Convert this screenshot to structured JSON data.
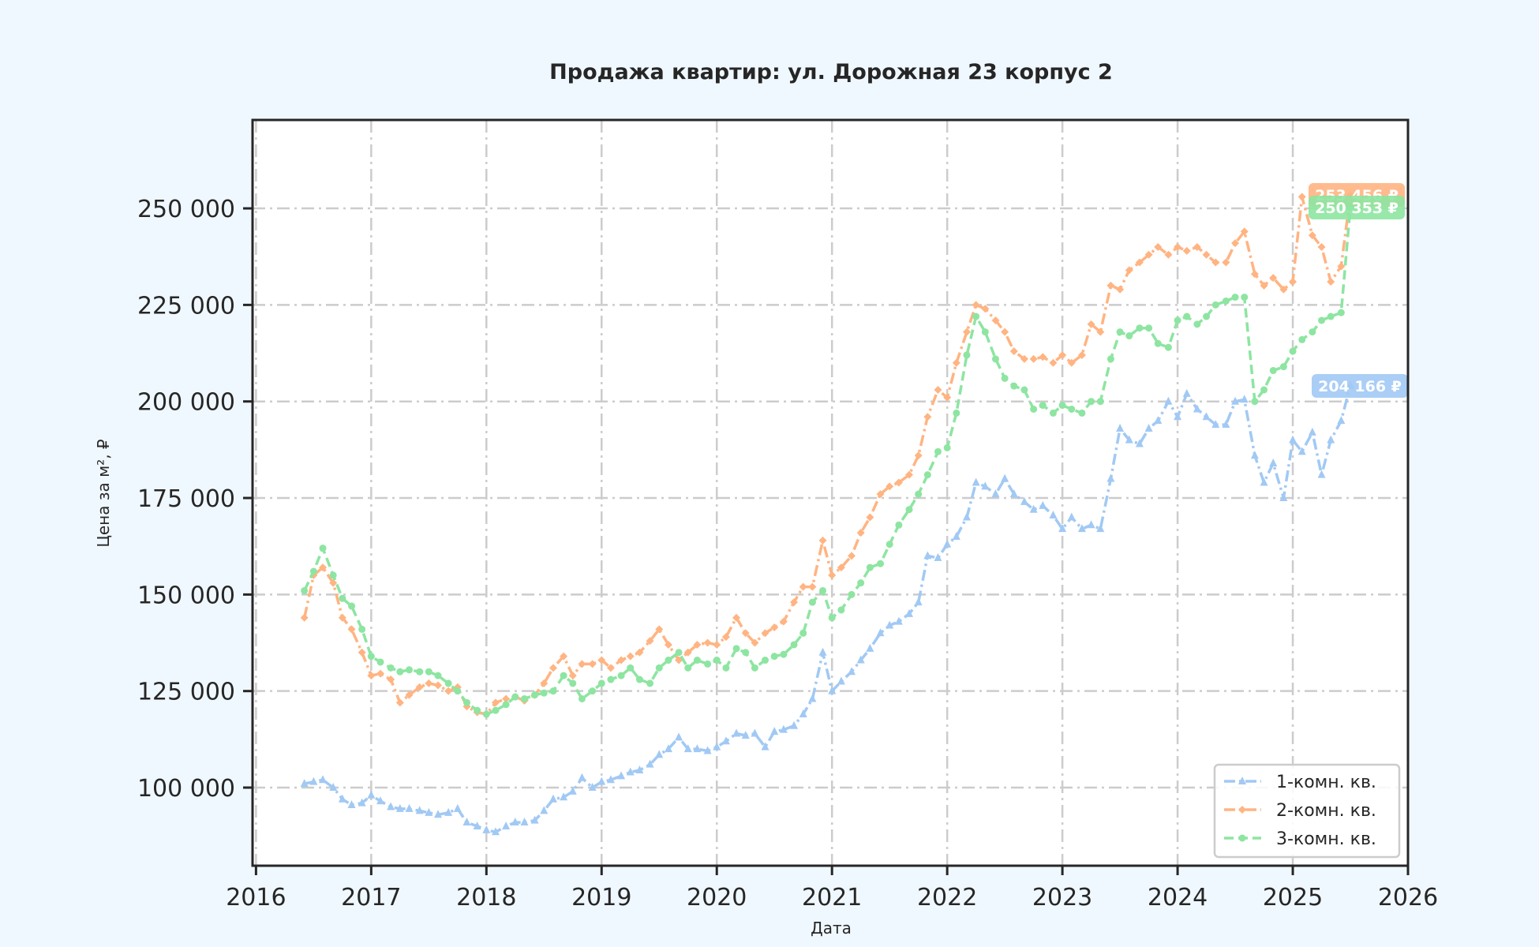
{
  "page": {
    "background": "#f0f8ff",
    "plot_background": "#ffffff"
  },
  "chart_data": {
    "type": "line",
    "title": "Продажа квартир: ул. Дорожная 23 корпус 2",
    "xlabel": "Дата",
    "ylabel": "Цена за м², ₽",
    "xlim": [
      2015.97,
      2026.0
    ],
    "ylim": [
      79770,
      272900
    ],
    "grid": true,
    "grid_style": "dashdot",
    "legend_position": "lower right",
    "x_ticks": [
      2016,
      2017,
      2018,
      2019,
      2020,
      2021,
      2022,
      2023,
      2024,
      2025,
      2026
    ],
    "x_tick_labels": [
      "2016",
      "2017",
      "2018",
      "2019",
      "2020",
      "2021",
      "2022",
      "2023",
      "2024",
      "2025",
      "2026"
    ],
    "y_ticks": [
      100000,
      125000,
      150000,
      175000,
      200000,
      225000,
      250000
    ],
    "y_tick_labels": [
      "100 000",
      "125 000",
      "150 000",
      "175 000",
      "200 000",
      "225 000",
      "250 000"
    ],
    "x": [
      2016.42,
      2016.5,
      2016.58,
      2016.67,
      2016.75,
      2016.83,
      2016.92,
      2017.0,
      2017.08,
      2017.17,
      2017.25,
      2017.33,
      2017.42,
      2017.5,
      2017.58,
      2017.67,
      2017.75,
      2017.83,
      2017.92,
      2018.0,
      2018.08,
      2018.17,
      2018.25,
      2018.33,
      2018.42,
      2018.5,
      2018.58,
      2018.67,
      2018.75,
      2018.83,
      2018.92,
      2019.0,
      2019.08,
      2019.17,
      2019.25,
      2019.33,
      2019.42,
      2019.5,
      2019.58,
      2019.67,
      2019.75,
      2019.83,
      2019.92,
      2020.0,
      2020.08,
      2020.17,
      2020.25,
      2020.33,
      2020.42,
      2020.5,
      2020.58,
      2020.67,
      2020.75,
      2020.83,
      2020.92,
      2021.0,
      2021.08,
      2021.17,
      2021.25,
      2021.33,
      2021.42,
      2021.5,
      2021.58,
      2021.67,
      2021.75,
      2021.83,
      2021.92,
      2022.0,
      2022.08,
      2022.17,
      2022.25,
      2022.33,
      2022.42,
      2022.5,
      2022.58,
      2022.67,
      2022.75,
      2022.83,
      2022.92,
      2023.0,
      2023.08,
      2023.17,
      2023.25,
      2023.33,
      2023.42,
      2023.5,
      2023.58,
      2023.67,
      2023.75,
      2023.83,
      2023.92,
      2024.0,
      2024.08,
      2024.17,
      2024.25,
      2024.33,
      2024.42,
      2024.5,
      2024.58,
      2024.67,
      2024.75,
      2024.83,
      2024.92,
      2025.0,
      2025.08,
      2025.17,
      2025.25,
      2025.33,
      2025.42,
      2025.5
    ],
    "series": [
      {
        "name": "1-комн. кв.",
        "color": "#a1c9f4",
        "marker": "triangle",
        "linestyle": "dashdot",
        "values": [
          101000,
          101500,
          102000,
          100000,
          97000,
          95500,
          96000,
          98000,
          96500,
          95000,
          94500,
          94500,
          94000,
          93500,
          93000,
          93500,
          94500,
          91000,
          90000,
          89000,
          88500,
          90000,
          91000,
          91000,
          91500,
          94000,
          97000,
          97500,
          99000,
          102500,
          100000,
          101500,
          102000,
          103000,
          104000,
          104500,
          106000,
          108500,
          110000,
          113000,
          110000,
          110000,
          109500,
          110500,
          112000,
          114000,
          113500,
          114000,
          110500,
          114500,
          115000,
          116000,
          119000,
          123000,
          135000,
          125000,
          127500,
          130000,
          133000,
          136000,
          140000,
          142000,
          143000,
          145000,
          148000,
          160000,
          159500,
          163000,
          165000,
          170000,
          179000,
          178000,
          176000,
          180000,
          176000,
          174000,
          172000,
          173000,
          170500,
          167000,
          170000,
          167000,
          168000,
          167000,
          180000,
          193000,
          190000,
          189000,
          193000,
          195000,
          200000,
          196000,
          202000,
          198000,
          196000,
          194000,
          194000,
          200000,
          200500,
          186000,
          179000,
          184000,
          175000,
          190000,
          187000,
          192000,
          181000,
          190000,
          195000,
          204166
        ]
      },
      {
        "name": "2-комн. кв.",
        "color": "#ffb482",
        "marker": "diamond",
        "linestyle": "dashdot",
        "values": [
          144000,
          155000,
          157000,
          153000,
          144000,
          141000,
          135000,
          129000,
          129500,
          128000,
          122000,
          124000,
          126000,
          127000,
          126500,
          125000,
          126000,
          121000,
          119500,
          119000,
          122000,
          123000,
          123500,
          122500,
          124000,
          127000,
          131000,
          134000,
          129000,
          132000,
          132000,
          133000,
          131000,
          133000,
          134000,
          135000,
          138000,
          141000,
          137000,
          133000,
          135000,
          137000,
          137500,
          137000,
          139000,
          144000,
          140000,
          137500,
          140000,
          141500,
          143000,
          148000,
          152000,
          152000,
          164000,
          155000,
          157000,
          160000,
          166000,
          170000,
          176000,
          178000,
          179000,
          181000,
          186000,
          196000,
          203000,
          201000,
          210000,
          218000,
          225000,
          224000,
          221000,
          218000,
          213000,
          211000,
          211000,
          211500,
          210000,
          212000,
          210000,
          212000,
          220000,
          218000,
          230000,
          229000,
          234000,
          236000,
          238000,
          240000,
          238000,
          240000,
          239000,
          240000,
          238000,
          236000,
          236000,
          241000,
          244000,
          233000,
          230000,
          232000,
          229000,
          231000,
          253000,
          243000,
          240000,
          231000,
          235000,
          253456
        ]
      },
      {
        "name": "3-комн. кв.",
        "color": "#8de5a1",
        "marker": "circle",
        "linestyle": "dashed",
        "values": [
          151000,
          156000,
          162000,
          155000,
          149000,
          147000,
          141000,
          134000,
          132500,
          131000,
          130000,
          130500,
          130000,
          130000,
          129000,
          127000,
          125000,
          122000,
          120000,
          119000,
          120000,
          121500,
          123500,
          123000,
          124000,
          124500,
          125000,
          129000,
          127000,
          123000,
          125000,
          127000,
          128000,
          129000,
          131000,
          128000,
          127000,
          131000,
          133000,
          135000,
          131000,
          133000,
          132000,
          133000,
          131000,
          136000,
          135000,
          131000,
          133000,
          134000,
          134500,
          137000,
          140000,
          148000,
          151000,
          144000,
          146000,
          150000,
          153000,
          157000,
          158000,
          163000,
          168000,
          172000,
          176000,
          181000,
          187000,
          188000,
          197000,
          212000,
          222000,
          218000,
          211000,
          206000,
          204000,
          203000,
          198000,
          199000,
          197000,
          199000,
          198000,
          197000,
          200000,
          200000,
          211000,
          218000,
          217000,
          219000,
          219000,
          215000,
          214000,
          221000,
          222000,
          220000,
          222000,
          225000,
          226000,
          227000,
          227000,
          200000,
          203000,
          208000,
          209000,
          213000,
          216000,
          218000,
          221000,
          222000,
          223000,
          250353
        ]
      }
    ],
    "annotations": [
      {
        "text": "253 456 ₽",
        "series": "2-комн. кв.",
        "value": 253456,
        "color": "#ffb482"
      },
      {
        "text": "250 353 ₽",
        "series": "3-комн. кв.",
        "value": 250353,
        "color": "#8de5a1"
      },
      {
        "text": "204 166 ₽",
        "series": "1-комн. кв.",
        "value": 204166,
        "color": "#a1c9f4"
      }
    ]
  }
}
